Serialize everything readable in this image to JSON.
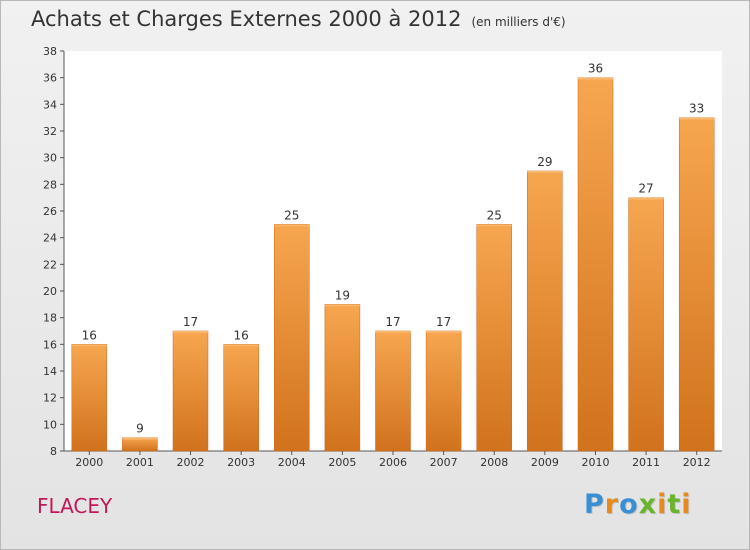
{
  "title": "Achats et Charges Externes 2000 à 2012",
  "subtitle": "(en milliers d'€)",
  "place": "FLACEY",
  "logo": {
    "text": "Proxiti",
    "letter_colors": [
      "#3a8fd4",
      "#e8891c",
      "#3a8fd4",
      "#6ab42d",
      "#e8891c",
      "#6ab42d",
      "#e8891c"
    ]
  },
  "colors": {
    "bar_top": "#f7a650",
    "bar_bottom": "#d1721c",
    "axis": "#555555",
    "grid": "#e0e0e0"
  },
  "chart_data": {
    "type": "bar",
    "title": "Achats et Charges Externes 2000 à 2012",
    "categories": [
      "2000",
      "2001",
      "2002",
      "2003",
      "2004",
      "2005",
      "2006",
      "2007",
      "2008",
      "2009",
      "2010",
      "2011",
      "2012"
    ],
    "values": [
      16,
      9,
      17,
      16,
      25,
      19,
      17,
      17,
      25,
      29,
      36,
      27,
      33
    ],
    "data_labels": [
      "16",
      "9",
      "17",
      "16",
      "25",
      "19",
      "17",
      "17",
      "25",
      "29",
      "36",
      "27",
      "33"
    ],
    "yticks": [
      "8",
      "10",
      "12",
      "14",
      "16",
      "18",
      "20",
      "22",
      "24",
      "26",
      "28",
      "30",
      "32",
      "34",
      "36",
      "38"
    ],
    "ylim": [
      8,
      38
    ],
    "xlabel": "",
    "ylabel": "",
    "grid": false
  }
}
